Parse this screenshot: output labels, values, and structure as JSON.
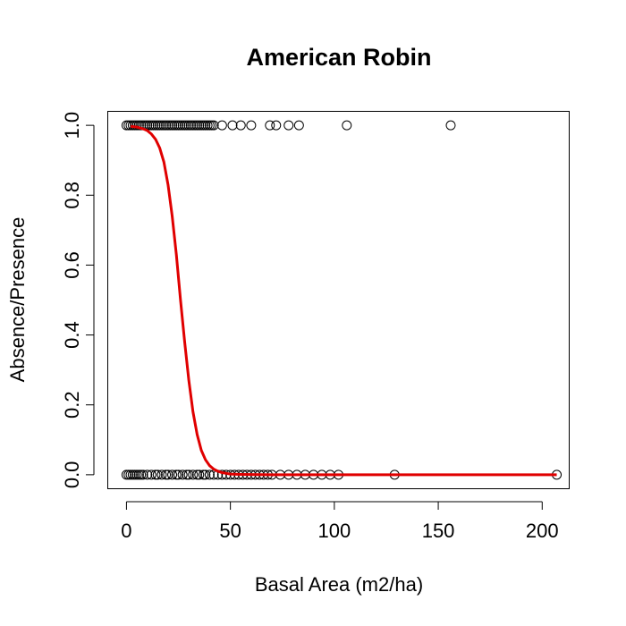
{
  "chart_data": {
    "type": "scatter",
    "title": "American Robin",
    "xlabel": "Basal Area (m2/ha)",
    "ylabel": "Absence/Presence",
    "xlim": [
      -9,
      213
    ],
    "ylim": [
      -0.04,
      1.04
    ],
    "xticks": [
      0,
      50,
      100,
      150,
      200
    ],
    "xtick_labels": [
      "0",
      "50",
      "100",
      "150",
      "200"
    ],
    "yticks": [
      0.0,
      0.2,
      0.4,
      0.6,
      0.8,
      1.0
    ],
    "ytick_labels": [
      "0.0",
      "0.2",
      "0.4",
      "0.6",
      "0.8",
      "1.0"
    ],
    "grid": false,
    "series": [
      {
        "marker": "open-circle",
        "color": "#000000",
        "x": [
          0,
          1,
          2,
          3,
          4,
          5,
          6,
          7,
          8,
          9,
          10,
          11,
          12,
          13,
          14,
          15,
          16,
          17,
          18,
          19,
          20,
          21,
          22,
          23,
          24,
          25,
          26,
          27,
          28,
          29,
          30,
          31,
          32,
          33,
          34,
          35,
          36,
          37,
          38,
          39,
          40,
          41,
          42,
          46,
          51,
          55,
          60,
          69,
          72,
          78,
          83,
          106,
          156,
          0,
          1,
          2,
          3,
          4,
          5,
          6,
          7,
          8,
          10,
          12,
          14,
          15,
          17,
          19,
          20,
          22,
          24,
          25,
          27,
          29,
          30,
          32,
          34,
          35,
          37,
          38,
          40,
          42,
          44,
          46,
          48,
          50,
          52,
          54,
          56,
          58,
          60,
          62,
          64,
          66,
          68,
          70,
          74,
          78,
          82,
          86,
          90,
          94,
          98,
          102,
          129,
          207
        ],
        "y": [
          1,
          1,
          1,
          1,
          1,
          1,
          1,
          1,
          1,
          1,
          1,
          1,
          1,
          1,
          1,
          1,
          1,
          1,
          1,
          1,
          1,
          1,
          1,
          1,
          1,
          1,
          1,
          1,
          1,
          1,
          1,
          1,
          1,
          1,
          1,
          1,
          1,
          1,
          1,
          1,
          1,
          1,
          1,
          1,
          1,
          1,
          1,
          1,
          1,
          1,
          1,
          1,
          1,
          0,
          0,
          0,
          0,
          0,
          0,
          0,
          0,
          0,
          0,
          0,
          0,
          0,
          0,
          0,
          0,
          0,
          0,
          0,
          0,
          0,
          0,
          0,
          0,
          0,
          0,
          0,
          0,
          0,
          0,
          0,
          0,
          0,
          0,
          0,
          0,
          0,
          0,
          0,
          0,
          0,
          0,
          0,
          0,
          0,
          0,
          0,
          0,
          0,
          0,
          0,
          0,
          0
        ]
      },
      {
        "type": "line",
        "color": "#e00000",
        "x": [
          2,
          5,
          8,
          10,
          12,
          14,
          16,
          18,
          20,
          22,
          24,
          26,
          28,
          30,
          32,
          34,
          36,
          38,
          40,
          42,
          44,
          46,
          48,
          50,
          55,
          60,
          70,
          80,
          100,
          150,
          207
        ],
        "y": [
          0.997,
          0.995,
          0.99,
          0.985,
          0.975,
          0.96,
          0.935,
          0.895,
          0.83,
          0.74,
          0.63,
          0.5,
          0.38,
          0.27,
          0.18,
          0.115,
          0.07,
          0.043,
          0.026,
          0.016,
          0.01,
          0.006,
          0.004,
          0.002,
          0.001,
          0.0005,
          0.0001,
          0,
          0,
          0,
          0
        ]
      }
    ]
  }
}
